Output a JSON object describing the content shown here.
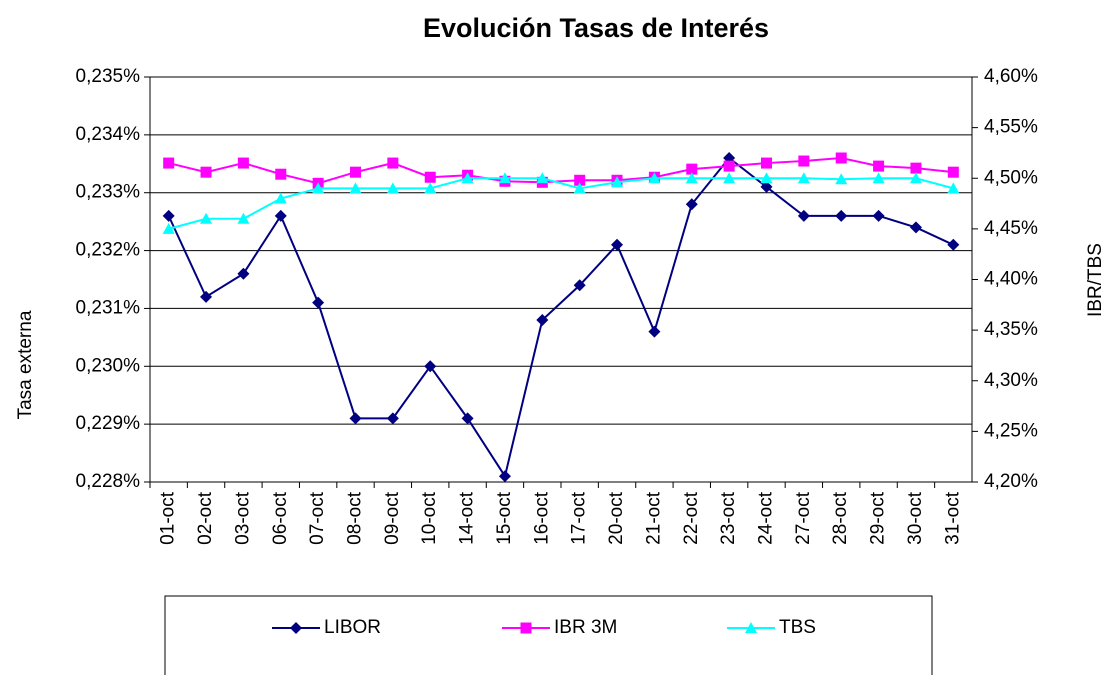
{
  "chart_data": {
    "type": "line",
    "title": "Evolución Tasas de Interés",
    "ylabel": "Tasa externa",
    "y2label": "IBR/TBS",
    "categories": [
      "01-oct",
      "02-oct",
      "03-oct",
      "06-oct",
      "07-oct",
      "08-oct",
      "09-oct",
      "10-oct",
      "14-oct",
      "15-oct",
      "16-oct",
      "17-oct",
      "20-oct",
      "21-oct",
      "22-oct",
      "23-oct",
      "24-oct",
      "27-oct",
      "28-oct",
      "29-oct",
      "30-oct",
      "31-oct"
    ],
    "series": [
      {
        "name": "LIBOR",
        "color": "#000080",
        "marker": "diamond",
        "axis": "y",
        "values": [
          0.2326,
          0.2312,
          0.2316,
          0.2326,
          0.2311,
          0.2291,
          0.2291,
          0.23,
          0.2291,
          0.2281,
          0.2308,
          0.2314,
          0.2321,
          0.2306,
          0.2328,
          0.2336,
          0.2331,
          0.2326,
          0.2326,
          0.2326,
          0.2324,
          0.2321
        ]
      },
      {
        "name": "IBR 3M",
        "color": "#ff00ff",
        "marker": "square",
        "axis": "y2",
        "values": [
          4.515,
          4.506,
          4.515,
          4.504,
          4.495,
          4.506,
          4.515,
          4.501,
          4.503,
          4.497,
          4.496,
          4.498,
          4.498,
          4.501,
          4.509,
          4.512,
          4.515,
          4.517,
          4.52,
          4.512,
          4.51,
          4.506
        ]
      },
      {
        "name": "TBS",
        "color": "#00ffff",
        "marker": "triangle",
        "axis": "y2",
        "values": [
          4.45,
          4.46,
          4.46,
          4.48,
          4.49,
          4.49,
          4.49,
          4.49,
          4.5,
          4.5,
          4.5,
          4.49,
          4.496,
          4.5,
          4.5,
          4.5,
          4.5,
          4.5,
          4.499,
          4.5,
          4.5,
          4.49
        ]
      }
    ],
    "ylim": [
      0.228,
      0.235
    ],
    "yticks": [
      {
        "value": 0.228,
        "label": "0,228%"
      },
      {
        "value": 0.229,
        "label": "0,229%"
      },
      {
        "value": 0.23,
        "label": "0,230%"
      },
      {
        "value": 0.231,
        "label": "0,231%"
      },
      {
        "value": 0.232,
        "label": "0,232%"
      },
      {
        "value": 0.233,
        "label": "0,233%"
      },
      {
        "value": 0.234,
        "label": "0,234%"
      },
      {
        "value": 0.235,
        "label": "0,235%"
      }
    ],
    "y2lim": [
      4.2,
      4.6
    ],
    "y2ticks": [
      {
        "value": 4.2,
        "label": "4,20%"
      },
      {
        "value": 4.25,
        "label": "4,25%"
      },
      {
        "value": 4.3,
        "label": "4,30%"
      },
      {
        "value": 4.35,
        "label": "4,35%"
      },
      {
        "value": 4.4,
        "label": "4,40%"
      },
      {
        "value": 4.45,
        "label": "4,45%"
      },
      {
        "value": 4.5,
        "label": "4,50%"
      },
      {
        "value": 4.55,
        "label": "4,55%"
      },
      {
        "value": 4.6,
        "label": "4,60%"
      }
    ],
    "grid": true,
    "legend": "bottom"
  }
}
